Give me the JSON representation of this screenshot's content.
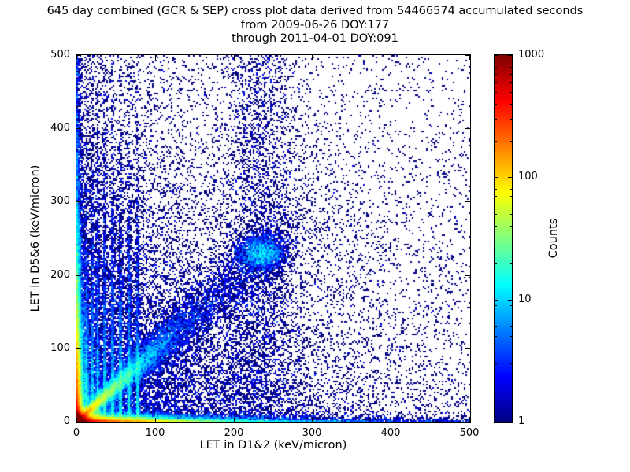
{
  "figure": {
    "background": "#ffffff",
    "frame_color": "#000000",
    "point_base_color": "#000080"
  },
  "chart_data": {
    "type": "heatmap",
    "title": "645 day combined (GCR & SEP) cross plot data derived from 54466574 accumulated seconds",
    "subtitle1": "from 2009-06-26 DOY:177",
    "subtitle2": "through 2011-04-01 DOY:091",
    "xlabel": "LET in D1&2 (keV/micron)",
    "ylabel": "LET in D5&6 (keV/micron)",
    "xlim": [
      0,
      500
    ],
    "ylim": [
      0,
      500
    ],
    "xticks": [
      0,
      100,
      200,
      300,
      400,
      500
    ],
    "yticks": [
      0,
      100,
      200,
      300,
      400,
      500
    ],
    "grid": false,
    "legend": false,
    "colorbar": {
      "label": "Counts",
      "scale": "log",
      "min": 1,
      "max": 1000,
      "ticks": [
        1,
        10,
        100,
        1000
      ],
      "colormap": "jet"
    },
    "density_components": [
      {
        "name": "origin-core",
        "type": "exp2d",
        "n": 100000,
        "xscale": 2.8,
        "yscale": 2.8
      },
      {
        "name": "origin-flame",
        "type": "exp2d",
        "n": 25000,
        "xscale": 8,
        "yscale": 5
      },
      {
        "name": "bottom-band",
        "type": "exp2d",
        "n": 30000,
        "xscale": 55,
        "yscale": 3
      },
      {
        "name": "bottom-band-far",
        "type": "exp2d",
        "n": 7000,
        "xscale": 170,
        "yscale": 2.5
      },
      {
        "name": "left-band",
        "type": "exp2d",
        "n": 22000,
        "xscale": 2.8,
        "yscale": 60
      },
      {
        "name": "left-band-far",
        "type": "exp2d",
        "n": 5000,
        "xscale": 2.8,
        "yscale": 180
      },
      {
        "name": "near-diagonal",
        "type": "diagonal",
        "n": 6000,
        "tscale": 30,
        "tmax": 120,
        "slope": 1.0,
        "spread0": 1.5,
        "spreadk": 0.05
      },
      {
        "name": "diagonal-band",
        "type": "diagonal",
        "n": 13000,
        "tscale": 80,
        "tmax": 330,
        "slope": 0.97,
        "spread0": 2,
        "spreadk": 0.09
      },
      {
        "name": "mid-cluster",
        "type": "gauss2d",
        "n": 2600,
        "cx": 235,
        "cy": 230,
        "sx": 15,
        "sy": 12
      },
      {
        "name": "vertical-streaks",
        "type": "streaks",
        "xs": [
          13,
          20,
          27,
          36,
          46,
          56,
          67,
          78
        ],
        "n_each": 1300,
        "yscale": 115,
        "xsigma": 1.2
      },
      {
        "name": "column-230",
        "type": "column",
        "n": 2600,
        "cx": 233,
        "sx": 24
      },
      {
        "name": "bg-left-weighted",
        "type": "exp2d",
        "n": 16000,
        "xscale": 140,
        "yscale": 160
      },
      {
        "name": "bg-uniform",
        "type": "uniform",
        "n": 3500
      }
    ]
  }
}
